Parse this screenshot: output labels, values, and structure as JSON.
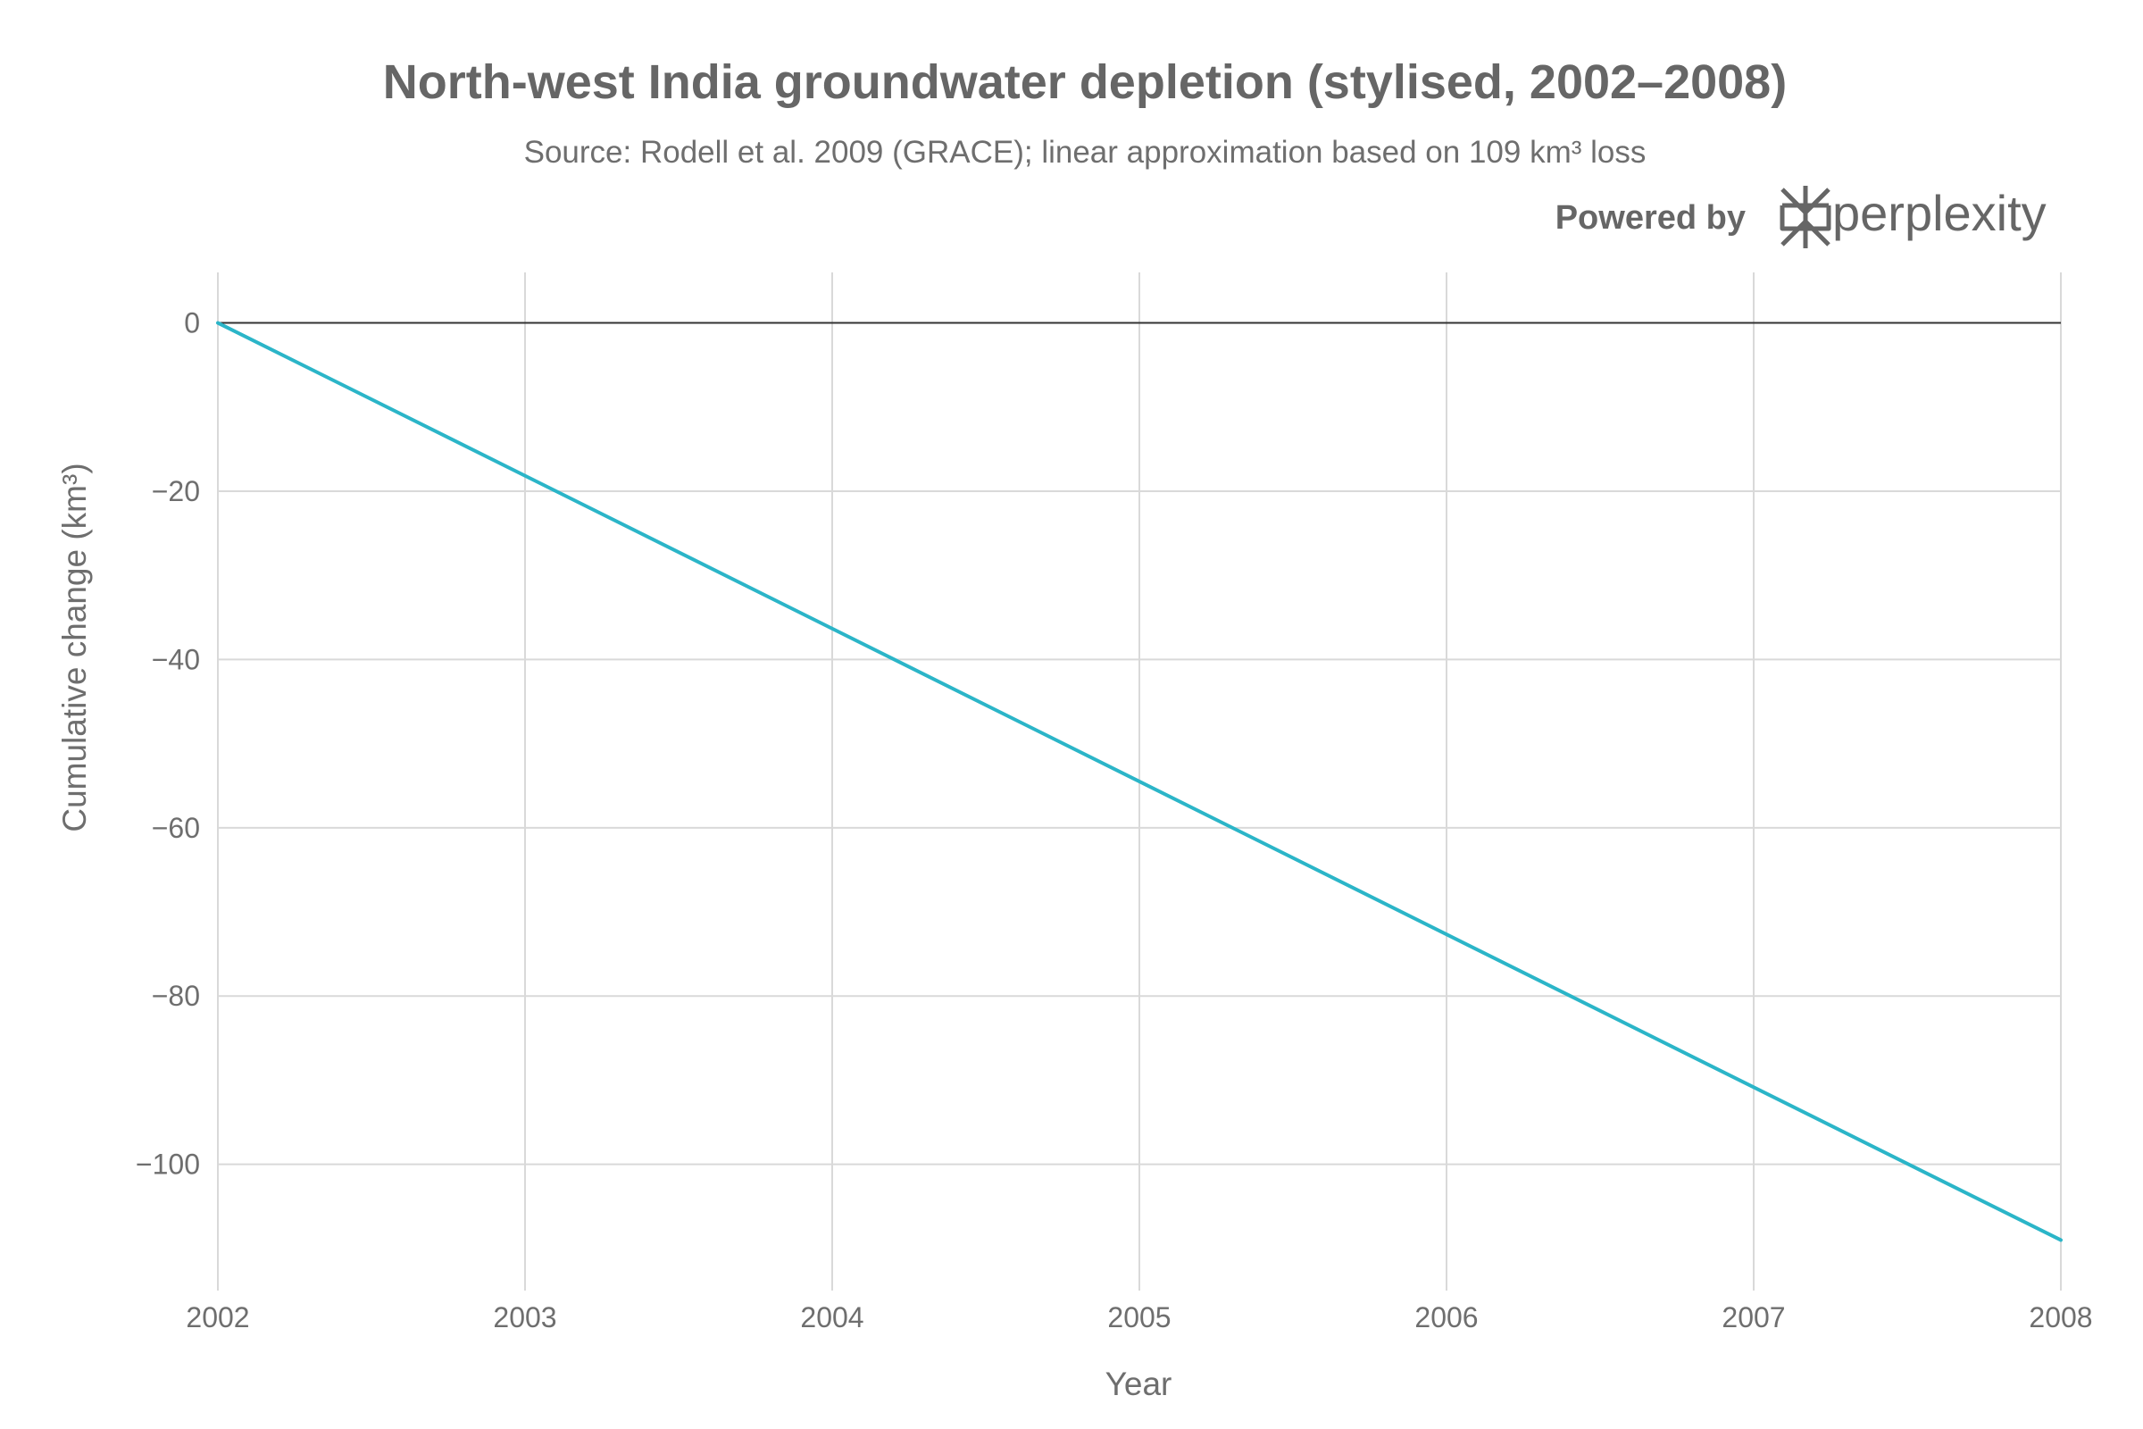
{
  "chart_data": {
    "type": "line",
    "title": "North-west India groundwater depletion (stylised, 2002–2008)",
    "subtitle": "Source: Rodell et al. 2009 (GRACE); linear approximation based on 109 km³ loss",
    "xlabel": "Year",
    "ylabel": "Cumulative change (km³)",
    "x": [
      2002,
      2008
    ],
    "x_ticks": [
      2002,
      2003,
      2004,
      2005,
      2006,
      2007,
      2008
    ],
    "y_ticks": [
      0,
      -20,
      -40,
      -60,
      -80,
      -100
    ],
    "xlim": [
      2002,
      2008
    ],
    "ylim": [
      -115,
      6
    ],
    "grid": true,
    "zero_line": true,
    "series": [
      {
        "values": [
          0,
          -109
        ],
        "color": "#2bb5c8"
      }
    ]
  },
  "branding": {
    "powered_by": "Powered by",
    "brand_name": "perplexity",
    "logo_icon": "perplexity-logo-icon"
  },
  "colors": {
    "grid": "#d9d9d9",
    "zero_line": "#333333",
    "text": "#6e6e6e"
  }
}
